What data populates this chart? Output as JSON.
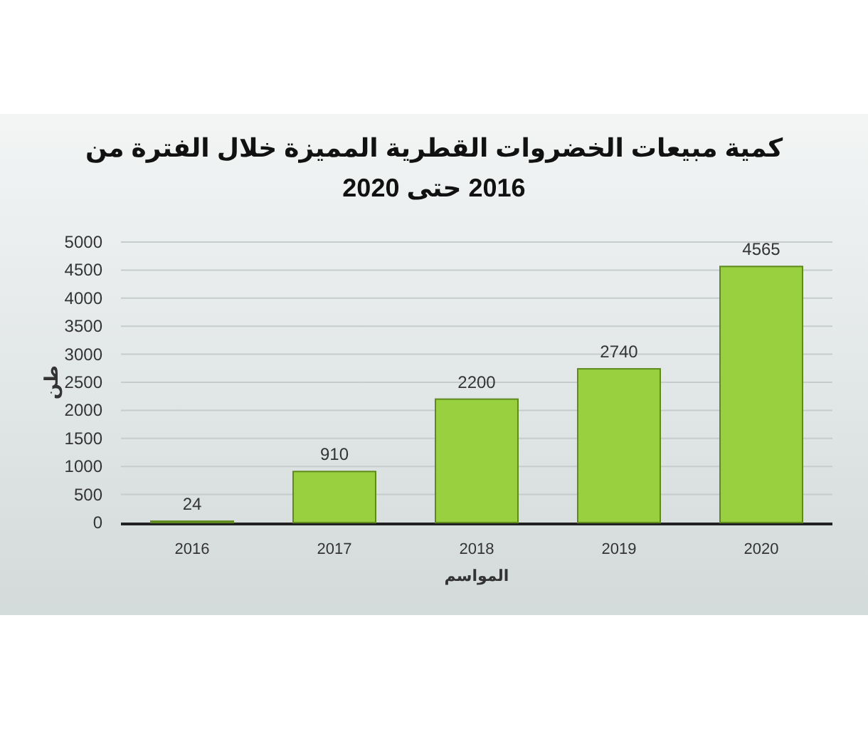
{
  "chart_data": {
    "type": "bar",
    "title": "كمية مبيعات الخضروات القطرية المميزة خلال الفترة من 2016 حتى 2020",
    "xlabel": "المواسم",
    "ylabel": "طن",
    "categories": [
      "2016",
      "2017",
      "2018",
      "2019",
      "2020"
    ],
    "values": [
      24,
      910,
      2200,
      2740,
      4565
    ],
    "color": "#99d040",
    "ylim": [
      0,
      5000
    ],
    "yticks": [
      0,
      500,
      1000,
      1500,
      2000,
      2500,
      3000,
      3500,
      4000,
      4500,
      5000
    ],
    "grid": "y",
    "data_labels": true
  }
}
